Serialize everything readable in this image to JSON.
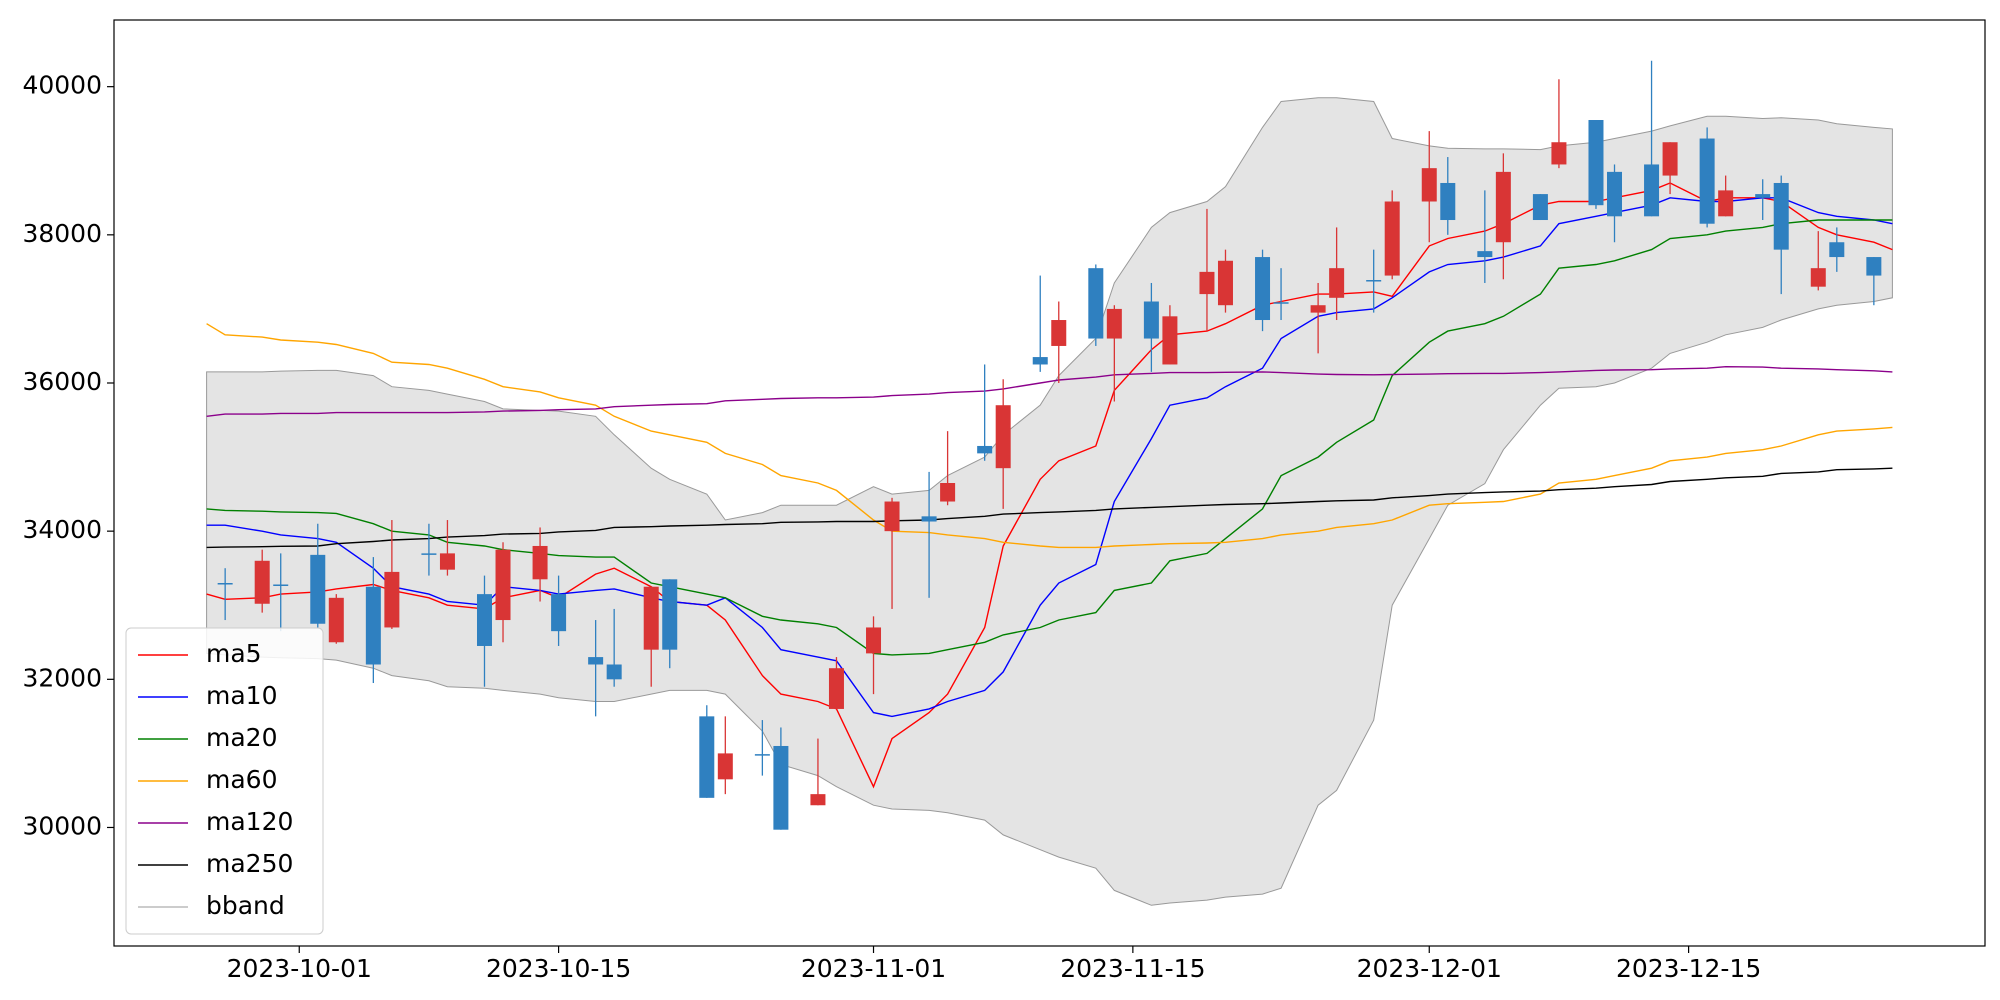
{
  "chart_data": {
    "type": "candlestick",
    "x": [
      "2023-09-26",
      "2023-09-27",
      "2023-09-29",
      "2023-09-30",
      "2023-10-02",
      "2023-10-03",
      "2023-10-05",
      "2023-10-06",
      "2023-10-08",
      "2023-10-09",
      "2023-10-11",
      "2023-10-12",
      "2023-10-14",
      "2023-10-15",
      "2023-10-17",
      "2023-10-18",
      "2023-10-20",
      "2023-10-21",
      "2023-10-23",
      "2023-10-24",
      "2023-10-26",
      "2023-10-27",
      "2023-10-29",
      "2023-10-30",
      "2023-11-01",
      "2023-11-02",
      "2023-11-04",
      "2023-11-05",
      "2023-11-07",
      "2023-11-08",
      "2023-11-10",
      "2023-11-11",
      "2023-11-13",
      "2023-11-14",
      "2023-11-16",
      "2023-11-17",
      "2023-11-19",
      "2023-11-20",
      "2023-11-22",
      "2023-11-23",
      "2023-11-25",
      "2023-11-26",
      "2023-11-28",
      "2023-11-29",
      "2023-12-01",
      "2023-12-02",
      "2023-12-04",
      "2023-12-05",
      "2023-12-07",
      "2023-12-08",
      "2023-12-10",
      "2023-12-11",
      "2023-12-13",
      "2023-12-14",
      "2023-12-16",
      "2023-12-17",
      "2023-12-19",
      "2023-12-20",
      "2023-12-22",
      "2023-12-23",
      "2023-12-25",
      "2023-12-26"
    ],
    "open": [
      null,
      33300,
      33020,
      33280,
      33680,
      32500,
      33250,
      32700,
      33700,
      33480,
      33150,
      32800,
      33350,
      33150,
      32300,
      32200,
      32400,
      33350,
      31500,
      30650,
      30990,
      31100,
      30300,
      31600,
      32350,
      34000,
      34200,
      34400,
      35150,
      34850,
      36350,
      36500,
      37550,
      36600,
      37100,
      36250,
      37200,
      37050,
      37700,
      37090,
      36950,
      37150,
      37390,
      37450,
      38450,
      38700,
      37780,
      37900,
      38550,
      38950,
      39550,
      38850,
      38950,
      38800,
      39300,
      38250,
      38550,
      38700,
      37300,
      37900,
      37700,
      null
    ],
    "high": [
      null,
      33500,
      33750,
      33700,
      34100,
      33150,
      33650,
      34150,
      34100,
      34150,
      33400,
      33850,
      34050,
      33400,
      32800,
      32950,
      33250,
      33350,
      31650,
      31500,
      31450,
      31350,
      31200,
      32300,
      32850,
      34450,
      34800,
      35350,
      36250,
      36050,
      37450,
      37100,
      37600,
      37050,
      37350,
      37050,
      38350,
      37800,
      37800,
      37550,
      37350,
      38100,
      37800,
      38600,
      39400,
      39050,
      38600,
      39100,
      38550,
      40100,
      39550,
      38950,
      40350,
      39250,
      39450,
      38800,
      38750,
      38800,
      38050,
      38100,
      37700,
      null
    ],
    "low": [
      null,
      32800,
      32900,
      32650,
      32700,
      32480,
      31950,
      32680,
      33400,
      33400,
      31900,
      32500,
      33050,
      32450,
      31500,
      31900,
      31900,
      32150,
      30400,
      30450,
      30700,
      29970,
      30300,
      31600,
      31800,
      32950,
      33100,
      34350,
      34950,
      34300,
      36150,
      36000,
      36500,
      35750,
      36150,
      36250,
      36700,
      36950,
      36700,
      36850,
      36400,
      36850,
      36950,
      37400,
      37900,
      38000,
      37350,
      37400,
      38200,
      38900,
      38350,
      37900,
      38250,
      38550,
      38100,
      38250,
      38200,
      37200,
      37250,
      37500,
      37050,
      null
    ],
    "close": [
      null,
      33280,
      33600,
      33260,
      32750,
      33100,
      32200,
      33450,
      33690,
      33700,
      32450,
      33750,
      33800,
      32650,
      32200,
      32000,
      33250,
      32400,
      30400,
      31000,
      30970,
      29970,
      30450,
      32150,
      32700,
      34400,
      34130,
      34650,
      35050,
      35700,
      36250,
      36850,
      36600,
      37000,
      36600,
      36900,
      37500,
      37650,
      36850,
      37070,
      37050,
      37550,
      37370,
      38450,
      38900,
      38200,
      37700,
      38850,
      38200,
      39250,
      38400,
      38250,
      38250,
      39250,
      38150,
      38600,
      38500,
      37800,
      37550,
      37700,
      37450,
      null
    ],
    "up_color": "#d93535",
    "down_color": "#2f80c0",
    "series": [
      {
        "name": "ma5",
        "color": "#ff0000",
        "values": [
          33150,
          33080,
          33100,
          33150,
          33180,
          33220,
          33280,
          33200,
          33100,
          33000,
          32950,
          33100,
          33200,
          33100,
          33420,
          33500,
          33250,
          33050,
          33000,
          32800,
          32050,
          31800,
          31700,
          31600,
          30550,
          31200,
          31550,
          31800,
          32700,
          33800,
          34700,
          34950,
          35150,
          35900,
          36450,
          36650,
          36700,
          36800,
          37050,
          37100,
          37200,
          37200,
          37230,
          37170,
          37850,
          37950,
          38050,
          38150,
          38400,
          38450,
          38450,
          38500,
          38600,
          38700,
          38450,
          38500,
          38500,
          38450,
          38100,
          38000,
          37900,
          37800
        ]
      },
      {
        "name": "ma10",
        "color": "#0000ff",
        "values": [
          34080,
          34080,
          34000,
          33950,
          33900,
          33850,
          33500,
          33250,
          33150,
          33050,
          33000,
          33250,
          33200,
          33150,
          33200,
          33220,
          33100,
          33050,
          33000,
          33100,
          32700,
          32400,
          32300,
          32250,
          31550,
          31500,
          31600,
          31700,
          31850,
          32100,
          33000,
          33300,
          33550,
          34400,
          35250,
          35700,
          35800,
          35950,
          36200,
          36600,
          36900,
          36950,
          37000,
          37150,
          37500,
          37600,
          37650,
          37700,
          37850,
          38150,
          38250,
          38300,
          38400,
          38500,
          38450,
          38450,
          38500,
          38500,
          38300,
          38250,
          38200,
          38150
        ]
      },
      {
        "name": "ma20",
        "color": "#008000",
        "values": [
          34300,
          34280,
          34270,
          34260,
          34250,
          34240,
          34100,
          34000,
          33950,
          33850,
          33800,
          33750,
          33700,
          33670,
          33650,
          33650,
          33300,
          33250,
          33150,
          33100,
          32850,
          32800,
          32750,
          32700,
          32350,
          32330,
          32350,
          32400,
          32500,
          32600,
          32700,
          32800,
          32900,
          33200,
          33300,
          33600,
          33700,
          33900,
          34300,
          34750,
          35000,
          35200,
          35500,
          36100,
          36550,
          36700,
          36800,
          36900,
          37200,
          37550,
          37600,
          37650,
          37800,
          37950,
          38000,
          38050,
          38100,
          38150,
          38200,
          38200,
          38200,
          38200
        ]
      },
      {
        "name": "ma60",
        "color": "#ffa500",
        "values": [
          36800,
          36650,
          36620,
          36580,
          36550,
          36520,
          36400,
          36280,
          36250,
          36200,
          36050,
          35950,
          35880,
          35800,
          35700,
          35550,
          35350,
          35300,
          35200,
          35050,
          34900,
          34750,
          34650,
          34550,
          34150,
          34000,
          33980,
          33950,
          33900,
          33850,
          33800,
          33780,
          33780,
          33800,
          33820,
          33830,
          33840,
          33850,
          33900,
          33950,
          34000,
          34050,
          34100,
          34150,
          34350,
          34370,
          34390,
          34400,
          34500,
          34650,
          34700,
          34750,
          34850,
          34950,
          35000,
          35050,
          35100,
          35150,
          35300,
          35350,
          35380,
          35400
        ]
      },
      {
        "name": "ma120",
        "color": "#8b008b",
        "values": [
          35550,
          35580,
          35580,
          35590,
          35590,
          35600,
          35600,
          35600,
          35600,
          35600,
          35610,
          35620,
          35630,
          35640,
          35650,
          35680,
          35700,
          35710,
          35720,
          35760,
          35780,
          35790,
          35800,
          35800,
          35810,
          35830,
          35850,
          35870,
          35890,
          35920,
          36000,
          36040,
          36080,
          36110,
          36130,
          36140,
          36140,
          36145,
          36150,
          36140,
          36120,
          36115,
          36110,
          36115,
          36120,
          36125,
          36130,
          36130,
          36140,
          36150,
          36170,
          36175,
          36180,
          36190,
          36200,
          36220,
          36215,
          36200,
          36190,
          36180,
          36165,
          36150
        ]
      },
      {
        "name": "ma250",
        "color": "#000000",
        "values": [
          33780,
          33785,
          33790,
          33795,
          33800,
          33830,
          33860,
          33880,
          33900,
          33920,
          33940,
          33960,
          33970,
          33990,
          34010,
          34050,
          34060,
          34070,
          34080,
          34090,
          34100,
          34120,
          34125,
          34130,
          34130,
          34140,
          34150,
          34170,
          34200,
          34230,
          34250,
          34260,
          34280,
          34300,
          34320,
          34330,
          34350,
          34360,
          34370,
          34380,
          34400,
          34410,
          34420,
          34450,
          34480,
          34500,
          34520,
          34530,
          34540,
          34560,
          34580,
          34600,
          34630,
          34670,
          34700,
          34720,
          34740,
          34780,
          34800,
          34830,
          34840,
          34850
        ]
      }
    ],
    "band": {
      "name": "bband",
      "color": "#999999",
      "fill": "#e4e4e4",
      "upper": [
        36150,
        36150,
        36150,
        36160,
        36170,
        36170,
        36100,
        35950,
        35900,
        35850,
        35750,
        35650,
        35630,
        35620,
        35550,
        35300,
        34850,
        34700,
        34500,
        34150,
        34250,
        34350,
        34350,
        34350,
        34600,
        34500,
        34550,
        34750,
        35000,
        35300,
        35700,
        36100,
        36600,
        37350,
        38100,
        38300,
        38450,
        38650,
        39450,
        39800,
        39850,
        39850,
        39800,
        39300,
        39200,
        39170,
        39160,
        39160,
        39150,
        39200,
        39250,
        39300,
        39400,
        39470,
        39600,
        39600,
        39570,
        39580,
        39550,
        39500,
        39450,
        39430
      ],
      "lower": [
        32350,
        32330,
        32300,
        32290,
        32280,
        32260,
        32150,
        32050,
        31980,
        31900,
        31880,
        31850,
        31800,
        31750,
        31700,
        31700,
        31800,
        31850,
        31850,
        31800,
        31300,
        30850,
        30700,
        30550,
        30300,
        30250,
        30230,
        30200,
        30100,
        29900,
        29700,
        29600,
        29450,
        29150,
        28950,
        28980,
        29020,
        29060,
        29100,
        29180,
        30300,
        30500,
        31450,
        33000,
        33900,
        34350,
        34640,
        35100,
        35700,
        35930,
        35950,
        36000,
        36200,
        36400,
        36550,
        36650,
        36750,
        36850,
        37000,
        37050,
        37100,
        37150
      ]
    },
    "xlim": [
      "2023-09-21",
      "2023-12-31"
    ],
    "xticks": [
      "2023-10-01",
      "2023-10-15",
      "2023-11-01",
      "2023-11-15",
      "2023-12-01",
      "2023-12-15"
    ],
    "ylim": [
      28400,
      40900
    ],
    "yticks": [
      30000,
      32000,
      34000,
      36000,
      38000,
      40000
    ],
    "legend": "lower left"
  }
}
